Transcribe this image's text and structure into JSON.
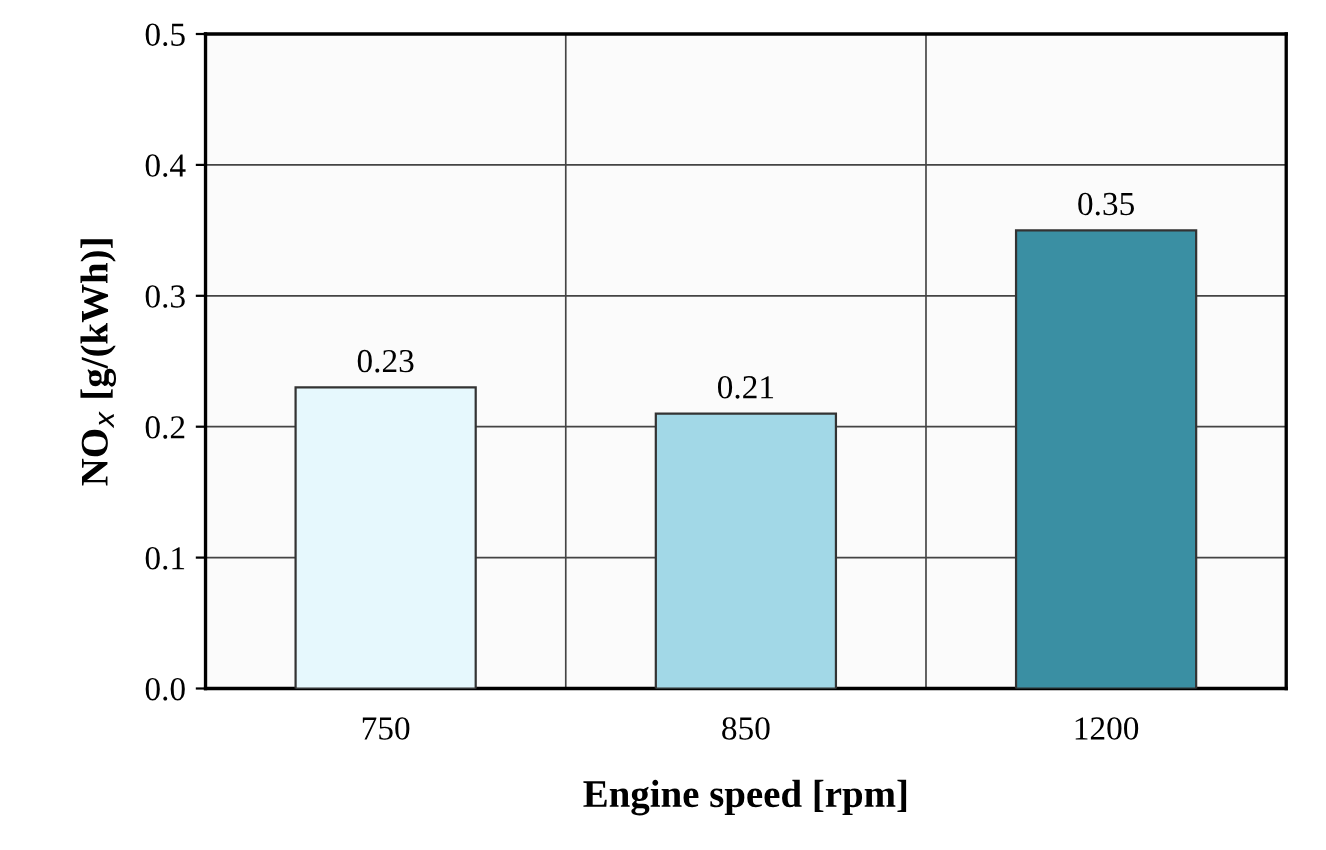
{
  "chart_data": {
    "type": "bar",
    "xlabel": "Engine speed [rpm]",
    "ylabel": "NO$_{x}$ [g/(kWh)]",
    "categories": [
      "750",
      "850",
      "1200"
    ],
    "values": [
      0.23,
      0.21,
      0.35
    ],
    "colors": [
      "#e6f8fd",
      "#a2d8e7",
      "#3a8fa3"
    ],
    "ylim": [
      0,
      0.5
    ],
    "yticks": [
      {
        "value": 0,
        "label": "0.0"
      },
      0.1,
      0.2,
      0.3,
      0.4,
      0.5
    ],
    "grid": true,
    "data_labels": true
  }
}
